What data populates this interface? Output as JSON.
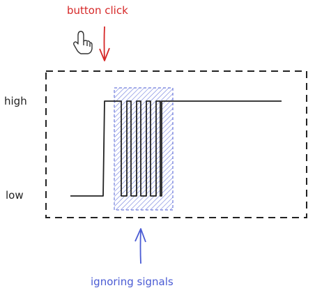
{
  "annotations": {
    "top": "button click",
    "bottom": "ignoring signals"
  },
  "levels": {
    "high": "high",
    "low": "low"
  },
  "icons": {
    "cursor": "hand-pointer-icon"
  },
  "colors": {
    "click": "#d62828",
    "ignore": "#4a5bd4",
    "ink": "#222222"
  }
}
